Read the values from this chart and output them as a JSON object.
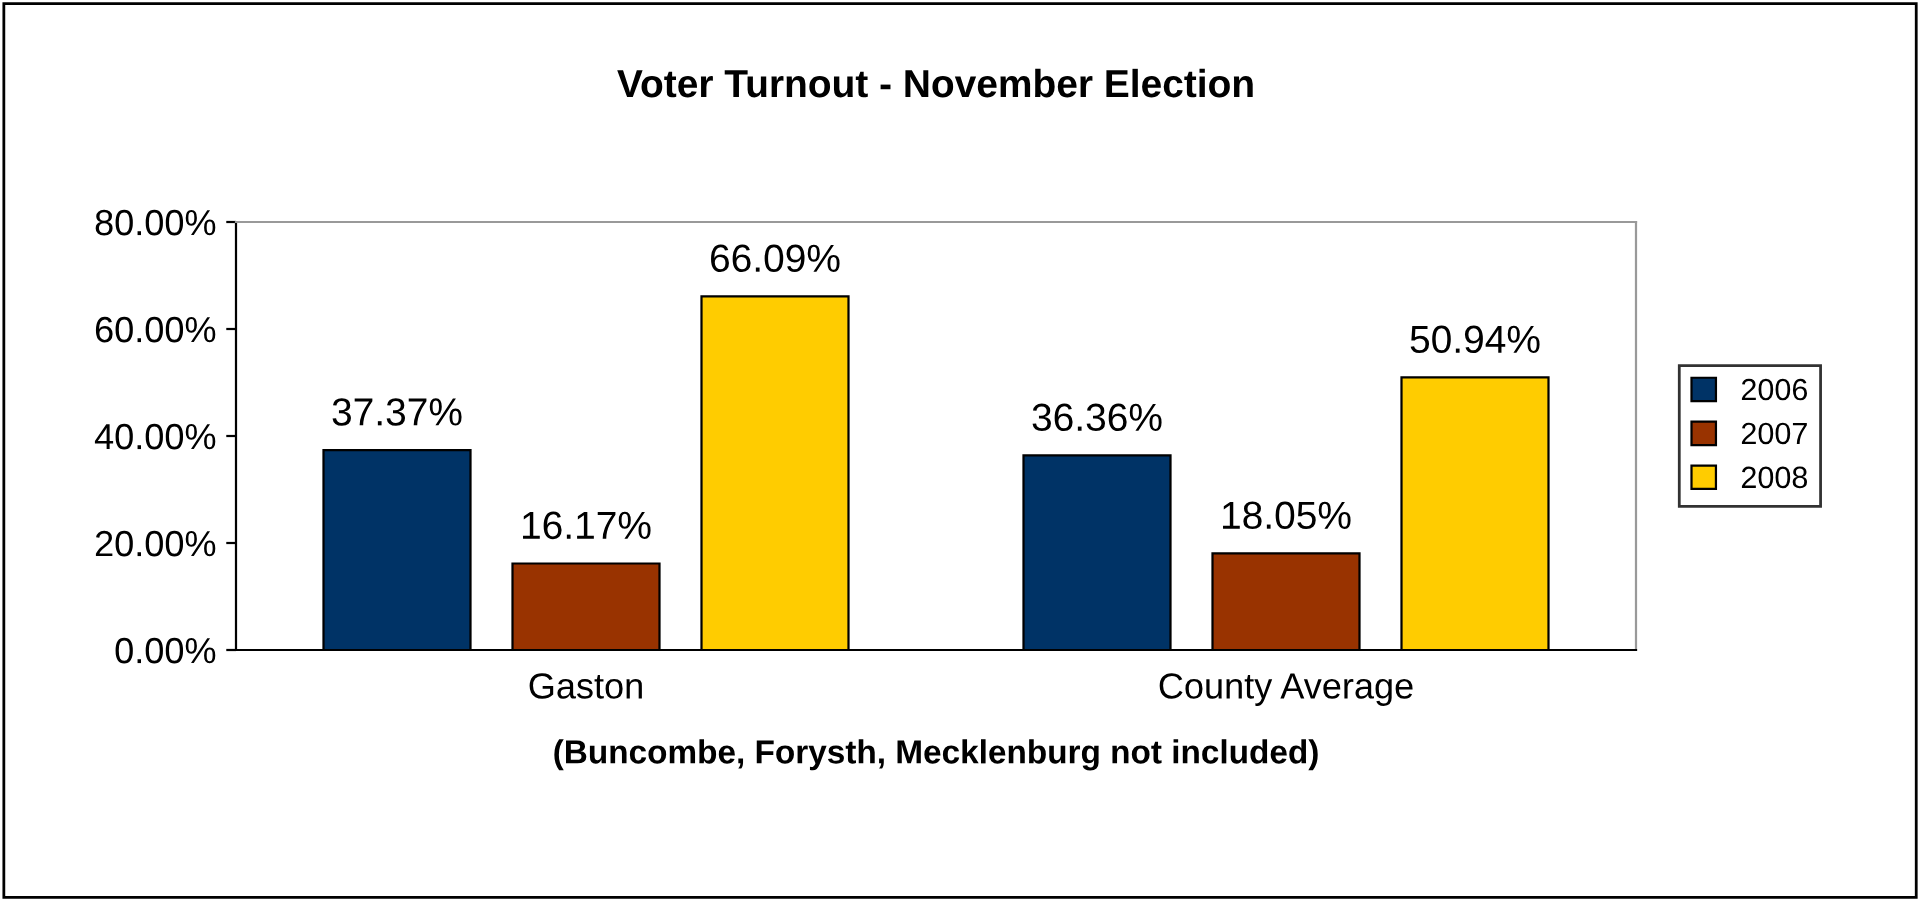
{
  "chart_data": {
    "type": "bar",
    "title": "Voter Turnout - November Election",
    "xlabel": "(Buncombe, Forysth, Mecklenburg not included)",
    "categories": [
      "Gaston",
      "County Average"
    ],
    "series": [
      {
        "name": "2006",
        "color": "#003366",
        "values": [
          37.37,
          36.36
        ],
        "value_labels": [
          "37.37%",
          "36.36%"
        ]
      },
      {
        "name": "2007",
        "color": "#993300",
        "values": [
          16.17,
          18.05
        ],
        "value_labels": [
          "16.17%",
          "18.05%"
        ]
      },
      {
        "name": "2008",
        "color": "#ffcc00",
        "values": [
          66.09,
          50.94
        ],
        "value_labels": [
          "66.09%",
          "50.94%"
        ]
      }
    ],
    "ylim": [
      0,
      80
    ],
    "yticks": [
      {
        "value": 0,
        "label": "0.00%"
      },
      {
        "value": 20,
        "label": "20.00%"
      },
      {
        "value": 40,
        "label": "40.00%"
      },
      {
        "value": 60,
        "label": "60.00%"
      },
      {
        "value": 80,
        "label": "80.00%"
      }
    ],
    "grid": false,
    "legend": "right"
  }
}
